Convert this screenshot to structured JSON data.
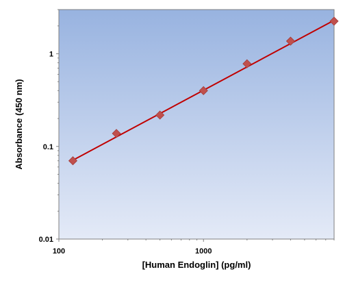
{
  "chart_data": {
    "type": "scatter",
    "title": "",
    "xlabel": "[Human Endoglin] (pg/ml)",
    "ylabel": "Absorbance (450 nm)",
    "x_scale": "log",
    "y_scale": "log",
    "xlim": [
      100,
      8000
    ],
    "ylim": [
      0.01,
      3
    ],
    "x_ticks": [
      100,
      1000
    ],
    "x_tick_labels": [
      "100",
      "1000"
    ],
    "y_ticks": [
      0.01,
      0.1,
      1
    ],
    "y_tick_labels": [
      "0.01",
      "0.1",
      "1"
    ],
    "grid": false,
    "legend": "none",
    "series": [
      {
        "name": "",
        "marker": "diamond",
        "color": "#c0504d",
        "x": [
          125,
          250,
          500,
          1000,
          2000,
          4000,
          8000
        ],
        "y": [
          0.07,
          0.138,
          0.218,
          0.4,
          0.78,
          1.37,
          2.25
        ]
      }
    ],
    "fit_line": {
      "color": "#c00000",
      "x": [
        125,
        8000
      ],
      "y": [
        0.071,
        2.3
      ]
    },
    "colors": {
      "plot_bg_top": "#98b3e0",
      "plot_bg_bottom": "#e4eaf7",
      "marker": "#c0504d",
      "line": "#c00000"
    }
  }
}
